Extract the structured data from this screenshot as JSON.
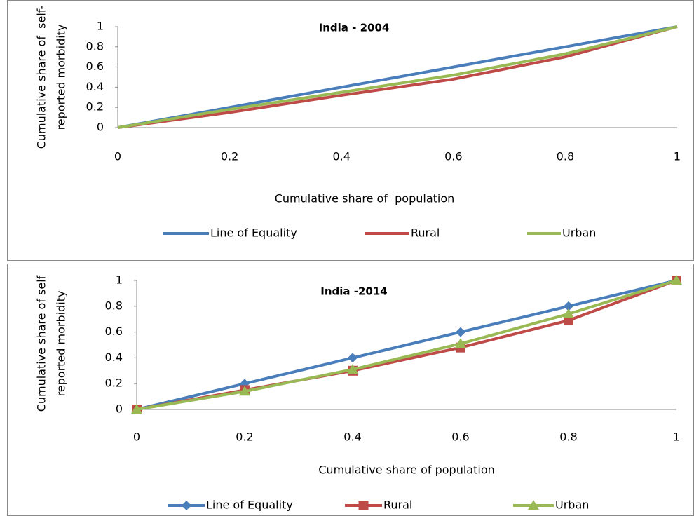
{
  "chart_data": [
    {
      "type": "line",
      "title": "India - 2004",
      "x_label": "Cumulative share of  population",
      "y_label": [
        "Cumulative share of  self-",
        "reported morbidity"
      ],
      "x": [
        0,
        0.2,
        0.4,
        0.6,
        0.8,
        1
      ],
      "xlim": [
        0,
        1
      ],
      "ylim": [
        0,
        1
      ],
      "xticks": [
        0,
        0.2,
        0.4,
        0.6,
        0.8,
        1
      ],
      "yticks": [
        0,
        0.2,
        0.4,
        0.6,
        0.8,
        1
      ],
      "series": [
        {
          "name": "Line of Equality",
          "color": "#4a7ebb",
          "marker": "none",
          "values": [
            0,
            0.2,
            0.4,
            0.6,
            0.8,
            1
          ]
        },
        {
          "name": "Rural",
          "color": "#be4b48",
          "marker": "none",
          "values": [
            0,
            0.15,
            0.32,
            0.48,
            0.7,
            1
          ]
        },
        {
          "name": "Urban",
          "color": "#98b954",
          "marker": "none",
          "values": [
            0,
            0.18,
            0.35,
            0.52,
            0.73,
            1
          ]
        }
      ]
    },
    {
      "type": "line",
      "title": "India -2014",
      "x_label": "Cumulative share of population",
      "y_label": [
        "Cumulative share of self",
        "reported morbidity"
      ],
      "x": [
        0,
        0.2,
        0.4,
        0.6,
        0.8,
        1
      ],
      "xlim": [
        0,
        1
      ],
      "ylim": [
        0,
        1
      ],
      "xticks": [
        0,
        0.2,
        0.4,
        0.6,
        0.8,
        1
      ],
      "yticks": [
        0,
        0.2,
        0.4,
        0.6,
        0.8,
        1
      ],
      "series": [
        {
          "name": "Line of Equality",
          "color": "#4a7ebb",
          "marker": "diamond",
          "values": [
            0,
            0.2,
            0.4,
            0.6,
            0.8,
            1
          ]
        },
        {
          "name": "Rural",
          "color": "#be4b48",
          "marker": "square",
          "values": [
            0,
            0.15,
            0.3,
            0.48,
            0.69,
            1
          ]
        },
        {
          "name": "Urban",
          "color": "#98b954",
          "marker": "triangle",
          "values": [
            0,
            0.14,
            0.31,
            0.51,
            0.74,
            1
          ]
        }
      ]
    }
  ]
}
